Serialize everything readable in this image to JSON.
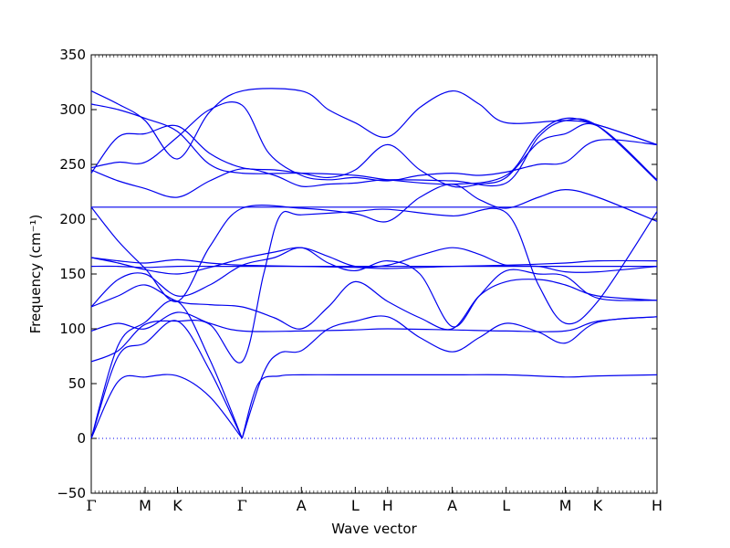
{
  "chart_data": {
    "type": "line",
    "title": "",
    "xlabel": "Wave vector",
    "ylabel": "Frequency (cm⁻¹)",
    "ylim": [
      -50,
      350
    ],
    "yticks": [
      -50,
      0,
      50,
      100,
      150,
      200,
      250,
      300,
      350
    ],
    "ytick_labels": [
      "−50",
      "0",
      "50",
      "100",
      "150",
      "200",
      "250",
      "300",
      "350"
    ],
    "xlim": [
      0,
      10.5
    ],
    "kpoints": [
      {
        "label": "Γ",
        "x": 0
      },
      {
        "label": "M",
        "x": 1.0
      },
      {
        "label": "K",
        "x": 1.6
      },
      {
        "label": "Γ",
        "x": 2.8
      },
      {
        "label": "A",
        "x": 3.9
      },
      {
        "label": "L",
        "x": 4.9
      },
      {
        "label": "H",
        "x": 5.5
      },
      {
        "label": "A",
        "x": 6.7
      },
      {
        "label": "L",
        "x": 7.7
      },
      {
        "label": "M",
        "x": 8.8
      },
      {
        "label": "K",
        "x": 9.4
      },
      {
        "label": "H",
        "x": 10.5
      }
    ],
    "zero_line": {
      "y": 0,
      "style": "dotted"
    },
    "grid": false,
    "legend": "none",
    "line_color": "#0000ee",
    "series": [
      {
        "values": [
          [
            0,
            0
          ],
          [
            0.5,
            52
          ],
          [
            1.0,
            56
          ],
          [
            1.6,
            57
          ],
          [
            2.2,
            38
          ],
          [
            2.8,
            0
          ]
        ]
      },
      {
        "values": [
          [
            2.8,
            0
          ],
          [
            3.1,
            50
          ],
          [
            3.5,
            57
          ],
          [
            3.9,
            58
          ],
          [
            4.9,
            58
          ],
          [
            5.5,
            58
          ],
          [
            6.7,
            58
          ],
          [
            7.7,
            58
          ],
          [
            8.8,
            56
          ],
          [
            9.4,
            57
          ],
          [
            10.5,
            58
          ]
        ]
      },
      {
        "values": [
          [
            0,
            0
          ],
          [
            0.5,
            75
          ],
          [
            1.0,
            87
          ],
          [
            1.6,
            107
          ],
          [
            2.2,
            62
          ],
          [
            2.8,
            0
          ]
        ]
      },
      {
        "values": [
          [
            2.8,
            0
          ],
          [
            3.2,
            60
          ],
          [
            3.5,
            78
          ],
          [
            3.9,
            80
          ],
          [
            4.4,
            100
          ],
          [
            4.9,
            107
          ],
          [
            5.5,
            111
          ],
          [
            6.1,
            92
          ],
          [
            6.7,
            79
          ],
          [
            7.2,
            92
          ],
          [
            7.7,
            105
          ],
          [
            8.3,
            97
          ],
          [
            8.8,
            87
          ],
          [
            9.4,
            106
          ],
          [
            10.5,
            111
          ]
        ]
      },
      {
        "values": [
          [
            0,
            0
          ],
          [
            0.5,
            85
          ],
          [
            1.0,
            106
          ],
          [
            1.6,
            125
          ],
          [
            2.2,
            72
          ],
          [
            2.8,
            0
          ]
        ]
      },
      {
        "values": [
          [
            0,
            70
          ],
          [
            0.5,
            80
          ],
          [
            1.0,
            104
          ],
          [
            1.6,
            107
          ],
          [
            2.2,
            104
          ],
          [
            2.8,
            70
          ],
          [
            3.2,
            150
          ],
          [
            3.5,
            203
          ],
          [
            3.9,
            204
          ],
          [
            4.9,
            207
          ],
          [
            5.5,
            209
          ],
          [
            6.7,
            203
          ],
          [
            7.7,
            206
          ],
          [
            8.3,
            140
          ],
          [
            8.8,
            105
          ],
          [
            9.4,
            125
          ],
          [
            10.5,
            207
          ]
        ]
      },
      {
        "values": [
          [
            0,
            98
          ],
          [
            0.5,
            105
          ],
          [
            1.0,
            100
          ],
          [
            1.6,
            115
          ],
          [
            2.2,
            105
          ],
          [
            2.8,
            98
          ],
          [
            3.9,
            98
          ],
          [
            4.9,
            99
          ],
          [
            5.5,
            100
          ],
          [
            6.7,
            99
          ],
          [
            7.7,
            98
          ],
          [
            8.8,
            98
          ],
          [
            9.4,
            107
          ],
          [
            10.5,
            111
          ]
        ]
      },
      {
        "values": [
          [
            0,
            120
          ],
          [
            0.5,
            130
          ],
          [
            1.0,
            140
          ],
          [
            1.6,
            125
          ],
          [
            2.2,
            122
          ],
          [
            2.8,
            120
          ],
          [
            3.4,
            110
          ],
          [
            3.9,
            100
          ],
          [
            4.4,
            120
          ],
          [
            4.9,
            143
          ],
          [
            5.5,
            125
          ],
          [
            6.1,
            110
          ],
          [
            6.7,
            100
          ],
          [
            7.2,
            130
          ],
          [
            7.7,
            143
          ],
          [
            8.3,
            145
          ],
          [
            8.8,
            140
          ],
          [
            9.4,
            130
          ],
          [
            10.5,
            126
          ]
        ]
      },
      {
        "values": [
          [
            0,
            120
          ],
          [
            0.5,
            145
          ],
          [
            1.0,
            150
          ],
          [
            1.6,
            130
          ],
          [
            2.2,
            140
          ],
          [
            2.8,
            158
          ],
          [
            3.4,
            165
          ],
          [
            3.9,
            174
          ],
          [
            4.4,
            160
          ],
          [
            4.9,
            153
          ],
          [
            5.5,
            162
          ],
          [
            6.1,
            150
          ],
          [
            6.7,
            102
          ],
          [
            7.2,
            130
          ],
          [
            7.7,
            153
          ],
          [
            8.3,
            150
          ],
          [
            8.8,
            148
          ],
          [
            9.4,
            128
          ],
          [
            10.5,
            126
          ]
        ]
      },
      {
        "values": [
          [
            0,
            157
          ],
          [
            0.5,
            157
          ],
          [
            1.0,
            156
          ],
          [
            1.6,
            157
          ],
          [
            2.2,
            157
          ],
          [
            2.8,
            157
          ],
          [
            3.9,
            157
          ],
          [
            4.9,
            157
          ],
          [
            5.5,
            157
          ],
          [
            6.7,
            157
          ],
          [
            7.7,
            157
          ],
          [
            8.8,
            157
          ],
          [
            9.4,
            157
          ],
          [
            10.5,
            157
          ]
        ]
      },
      {
        "values": [
          [
            0,
            165
          ],
          [
            0.5,
            160
          ],
          [
            1.0,
            154
          ],
          [
            1.6,
            150
          ],
          [
            2.2,
            156
          ],
          [
            2.8,
            164
          ],
          [
            3.4,
            170
          ],
          [
            3.9,
            174
          ],
          [
            4.4,
            166
          ],
          [
            4.9,
            157
          ],
          [
            5.5,
            158
          ],
          [
            6.1,
            167
          ],
          [
            6.7,
            174
          ],
          [
            7.2,
            168
          ],
          [
            7.7,
            158
          ],
          [
            8.3,
            157
          ],
          [
            8.8,
            152
          ],
          [
            9.4,
            152
          ],
          [
            10.5,
            157
          ]
        ]
      },
      {
        "values": [
          [
            0,
            165
          ],
          [
            0.5,
            162
          ],
          [
            1.0,
            160
          ],
          [
            1.6,
            163
          ],
          [
            2.2,
            160
          ],
          [
            2.8,
            158
          ],
          [
            3.9,
            157
          ],
          [
            4.9,
            156
          ],
          [
            5.5,
            155
          ],
          [
            6.7,
            157
          ],
          [
            7.7,
            158
          ],
          [
            8.8,
            160
          ],
          [
            9.4,
            162
          ],
          [
            10.5,
            162
          ]
        ]
      },
      {
        "values": [
          [
            0,
            211
          ],
          [
            0.5,
            211
          ],
          [
            1.0,
            211
          ],
          [
            1.6,
            211
          ],
          [
            2.2,
            211
          ],
          [
            2.8,
            211
          ],
          [
            3.9,
            211
          ],
          [
            4.9,
            211
          ],
          [
            5.5,
            211
          ],
          [
            6.7,
            211
          ],
          [
            7.7,
            211
          ],
          [
            8.8,
            211
          ],
          [
            9.4,
            211
          ],
          [
            10.5,
            211
          ]
        ]
      },
      {
        "values": [
          [
            0,
            211
          ],
          [
            0.5,
            180
          ],
          [
            1.0,
            155
          ],
          [
            1.6,
            125
          ],
          [
            2.2,
            175
          ],
          [
            2.8,
            210
          ],
          [
            3.9,
            210
          ],
          [
            4.9,
            205
          ],
          [
            5.5,
            198
          ],
          [
            6.1,
            220
          ],
          [
            6.7,
            232
          ],
          [
            7.2,
            218
          ],
          [
            7.7,
            210
          ],
          [
            8.3,
            220
          ],
          [
            8.8,
            227
          ],
          [
            9.4,
            220
          ],
          [
            10.5,
            198
          ]
        ]
      },
      {
        "values": [
          [
            0,
            245
          ],
          [
            0.5,
            235
          ],
          [
            1.0,
            228
          ],
          [
            1.6,
            220
          ],
          [
            2.2,
            235
          ],
          [
            2.8,
            246
          ],
          [
            3.4,
            240
          ],
          [
            3.9,
            230
          ],
          [
            4.4,
            232
          ],
          [
            4.9,
            233
          ],
          [
            5.5,
            236
          ],
          [
            6.7,
            235
          ],
          [
            7.7,
            233
          ],
          [
            8.3,
            275
          ],
          [
            8.8,
            290
          ],
          [
            9.4,
            285
          ],
          [
            10.5,
            235
          ]
        ]
      },
      {
        "values": [
          [
            0,
            247
          ],
          [
            0.5,
            252
          ],
          [
            1.0,
            252
          ],
          [
            1.6,
            275
          ],
          [
            2.2,
            300
          ],
          [
            2.8,
            304
          ],
          [
            3.3,
            260
          ],
          [
            3.9,
            240
          ],
          [
            4.4,
            236
          ],
          [
            4.9,
            238
          ],
          [
            5.5,
            235
          ],
          [
            6.1,
            240
          ],
          [
            6.7,
            242
          ],
          [
            7.2,
            240
          ],
          [
            7.7,
            243
          ],
          [
            8.3,
            250
          ],
          [
            8.8,
            252
          ],
          [
            9.4,
            272
          ],
          [
            10.5,
            268
          ]
        ]
      },
      {
        "values": [
          [
            0,
            242
          ],
          [
            0.5,
            275
          ],
          [
            1.0,
            278
          ],
          [
            1.6,
            285
          ],
          [
            2.2,
            260
          ],
          [
            2.8,
            247
          ],
          [
            3.4,
            245
          ],
          [
            3.9,
            242
          ],
          [
            4.4,
            238
          ],
          [
            4.9,
            245
          ],
          [
            5.5,
            268
          ],
          [
            6.1,
            245
          ],
          [
            6.7,
            230
          ],
          [
            7.2,
            232
          ],
          [
            7.7,
            238
          ],
          [
            8.3,
            270
          ],
          [
            8.8,
            278
          ],
          [
            9.4,
            285
          ],
          [
            10.5,
            236
          ]
        ]
      },
      {
        "values": [
          [
            0,
            305
          ],
          [
            0.5,
            300
          ],
          [
            1.0,
            292
          ],
          [
            1.6,
            280
          ],
          [
            2.2,
            250
          ],
          [
            2.8,
            242
          ],
          [
            3.9,
            242
          ],
          [
            4.9,
            240
          ],
          [
            5.5,
            236
          ],
          [
            6.7,
            232
          ],
          [
            7.7,
            240
          ],
          [
            8.3,
            278
          ],
          [
            8.8,
            292
          ],
          [
            9.4,
            286
          ],
          [
            10.5,
            268
          ]
        ]
      },
      {
        "values": [
          [
            0,
            317
          ],
          [
            0.5,
            305
          ],
          [
            1.0,
            290
          ],
          [
            1.6,
            255
          ],
          [
            2.2,
            298
          ],
          [
            2.8,
            317
          ],
          [
            3.9,
            317
          ],
          [
            4.4,
            300
          ],
          [
            4.9,
            288
          ],
          [
            5.5,
            275
          ],
          [
            6.1,
            302
          ],
          [
            6.7,
            317
          ],
          [
            7.2,
            305
          ],
          [
            7.7,
            288
          ],
          [
            8.8,
            290
          ],
          [
            9.4,
            286
          ],
          [
            10.5,
            268
          ]
        ]
      }
    ]
  }
}
